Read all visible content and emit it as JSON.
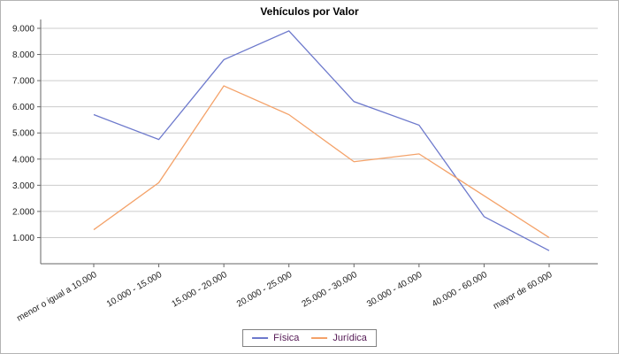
{
  "title": "Vehículos por Valor",
  "colors": {
    "background": "#ffffff",
    "outer_border": "#b4b4b4",
    "gridline": "#cccccc",
    "axis": "#666666",
    "tick_label": "#222222",
    "legend_border": "#808080",
    "legend_text": "#551a55"
  },
  "legend": {
    "position": "bottom",
    "items": [
      {
        "label": "Física",
        "color": "#6d79cc"
      },
      {
        "label": "Jurídica",
        "color": "#f4a269"
      }
    ]
  },
  "chart_data": {
    "type": "line",
    "title": "Vehículos por Valor",
    "xlabel": "",
    "ylabel": "",
    "grid": "horizontal",
    "legend_position": "bottom",
    "categories": [
      "menor o igual a 10.000",
      "10.000 - 15.000",
      "15.000 - 20.000",
      "20.000 - 25.000",
      "25.000 - 30.000",
      "30.000 - 40.000",
      "40.000 - 60.000",
      "mayor de 60.000"
    ],
    "series": [
      {
        "name": "Física",
        "color": "#6d79cc",
        "values": [
          5700,
          4750,
          7800,
          8900,
          6200,
          5300,
          1800,
          500
        ]
      },
      {
        "name": "Jurídica",
        "color": "#f4a269",
        "values": [
          1300,
          3100,
          6800,
          5700,
          3900,
          4200,
          2600,
          1000
        ]
      }
    ],
    "ylim": [
      0,
      9400
    ],
    "y_ticks": [
      1000,
      2000,
      3000,
      4000,
      5000,
      6000,
      7000,
      8000,
      9000
    ],
    "y_tick_labels": [
      "1.000",
      "2.000",
      "3.000",
      "4.000",
      "5.000",
      "6.000",
      "7.000",
      "8.000",
      "9.000"
    ]
  }
}
